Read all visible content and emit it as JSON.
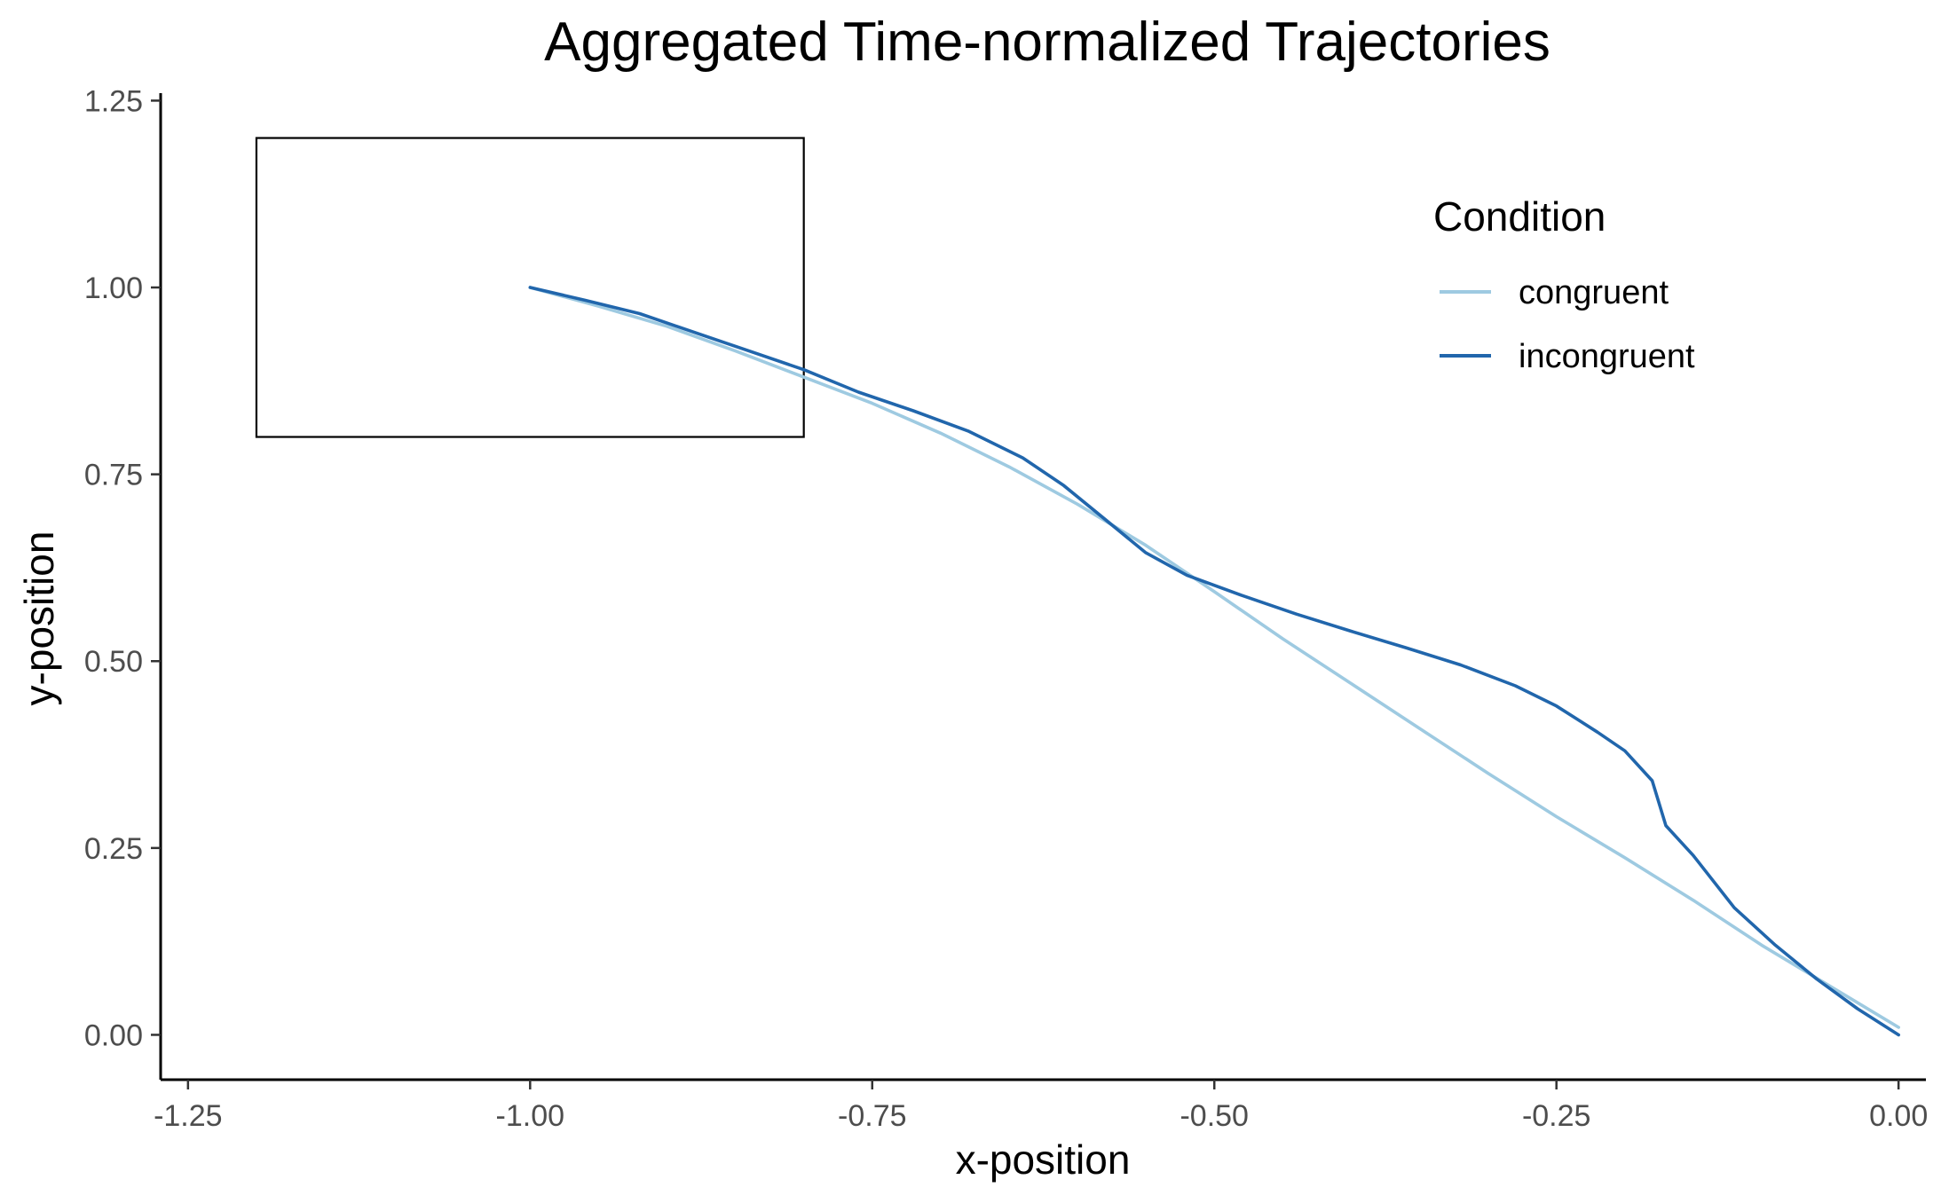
{
  "chart_data": {
    "type": "line",
    "title": "Aggregated Time-normalized Trajectories",
    "xlabel": "x-position",
    "ylabel": "y-position",
    "xlim": [
      -1.27,
      0.02
    ],
    "ylim": [
      -0.06,
      1.26
    ],
    "x_ticks": [
      -1.25,
      -1.0,
      -0.75,
      -0.5,
      -0.25,
      0.0
    ],
    "x_tick_labels": [
      "-1.25",
      "-1.00",
      "-0.75",
      "-0.50",
      "-0.25",
      "0.00"
    ],
    "y_ticks": [
      0.0,
      0.25,
      0.5,
      0.75,
      1.0,
      1.25
    ],
    "y_tick_labels": [
      "0.00",
      "0.25",
      "0.50",
      "0.75",
      "1.00",
      "1.25"
    ],
    "grid": false,
    "legend": {
      "title": "Condition",
      "position": "top-right"
    },
    "rectangle": {
      "x0": -1.2,
      "x1": -0.8,
      "y0": 0.8,
      "y1": 1.2,
      "stroke": "#000000"
    },
    "series": [
      {
        "name": "congruent",
        "color": "#9ecae1",
        "points": [
          [
            -1.0,
            1.0
          ],
          [
            -0.95,
            0.975
          ],
          [
            -0.9,
            0.948
          ],
          [
            -0.85,
            0.915
          ],
          [
            -0.8,
            0.88
          ],
          [
            -0.75,
            0.845
          ],
          [
            -0.7,
            0.805
          ],
          [
            -0.65,
            0.76
          ],
          [
            -0.6,
            0.71
          ],
          [
            -0.55,
            0.655
          ],
          [
            -0.5,
            0.593
          ],
          [
            -0.45,
            0.53
          ],
          [
            -0.4,
            0.47
          ],
          [
            -0.35,
            0.41
          ],
          [
            -0.3,
            0.35
          ],
          [
            -0.25,
            0.292
          ],
          [
            -0.2,
            0.237
          ],
          [
            -0.15,
            0.18
          ],
          [
            -0.1,
            0.12
          ],
          [
            -0.05,
            0.065
          ],
          [
            0.0,
            0.01
          ]
        ]
      },
      {
        "name": "incongruent",
        "color": "#2166ac",
        "points": [
          [
            -1.0,
            1.0
          ],
          [
            -0.96,
            0.983
          ],
          [
            -0.92,
            0.965
          ],
          [
            -0.88,
            0.94
          ],
          [
            -0.84,
            0.915
          ],
          [
            -0.8,
            0.89
          ],
          [
            -0.76,
            0.86
          ],
          [
            -0.72,
            0.835
          ],
          [
            -0.68,
            0.808
          ],
          [
            -0.64,
            0.772
          ],
          [
            -0.61,
            0.735
          ],
          [
            -0.58,
            0.69
          ],
          [
            -0.55,
            0.645
          ],
          [
            -0.52,
            0.615
          ],
          [
            -0.48,
            0.588
          ],
          [
            -0.44,
            0.563
          ],
          [
            -0.4,
            0.54
          ],
          [
            -0.36,
            0.518
          ],
          [
            -0.32,
            0.495
          ],
          [
            -0.28,
            0.467
          ],
          [
            -0.25,
            0.44
          ],
          [
            -0.22,
            0.405
          ],
          [
            -0.2,
            0.38
          ],
          [
            -0.18,
            0.34
          ],
          [
            -0.17,
            0.28
          ],
          [
            -0.15,
            0.24
          ],
          [
            -0.12,
            0.17
          ],
          [
            -0.09,
            0.12
          ],
          [
            -0.06,
            0.075
          ],
          [
            -0.03,
            0.035
          ],
          [
            0.0,
            0.0
          ]
        ]
      }
    ]
  }
}
